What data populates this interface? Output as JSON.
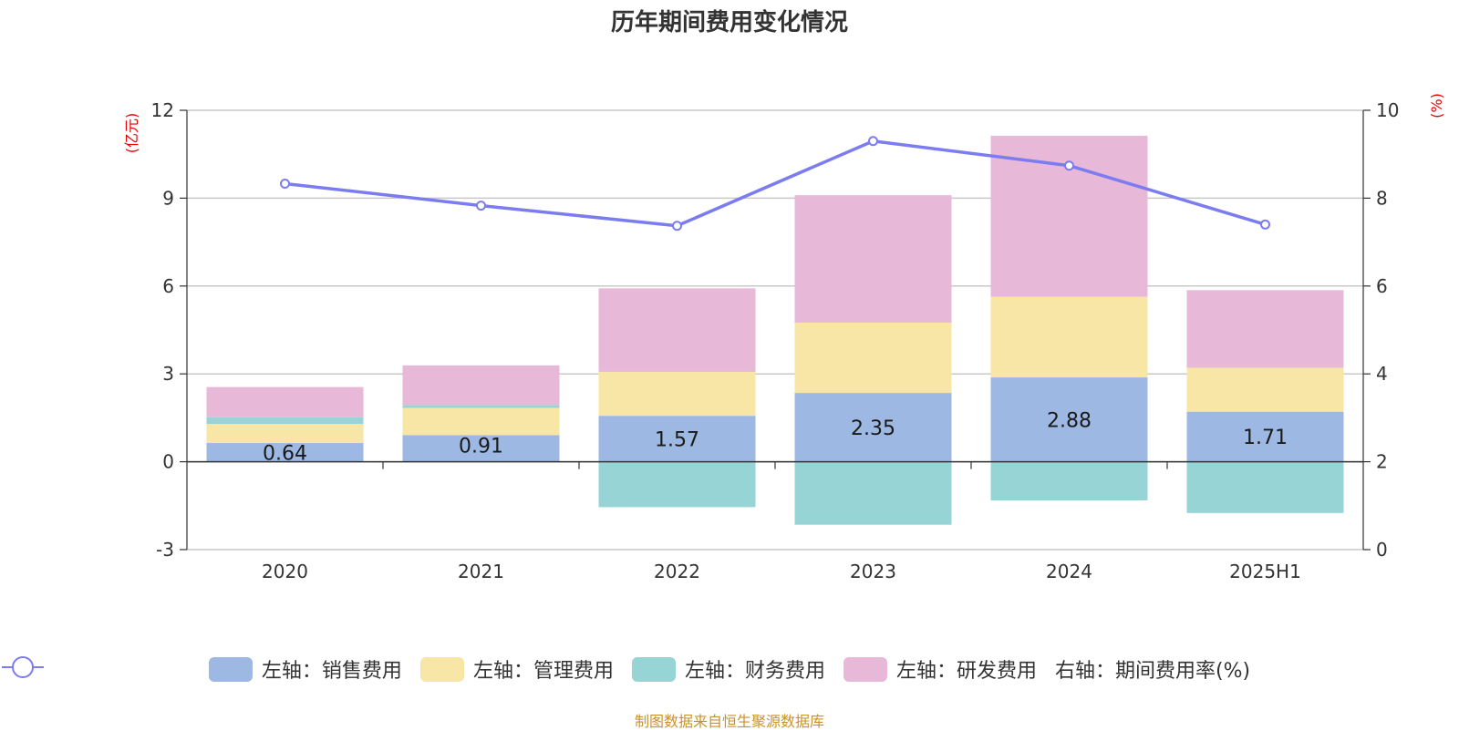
{
  "title": "历年期间费用变化情况",
  "source_note": "制图数据来自恒生聚源数据库",
  "left_unit": "(亿元)",
  "right_unit": "(%)",
  "colors": {
    "sales": "#9db8e2",
    "admin": "#f8e6a6",
    "finance": "#97d4d5",
    "rnd": "#e8b8d9",
    "rate": "#7b7cf0"
  },
  "legend": [
    {
      "key": "sales",
      "label": "左轴：销售费用"
    },
    {
      "key": "admin",
      "label": "左轴：管理费用"
    },
    {
      "key": "finance",
      "label": "左轴：财务费用"
    },
    {
      "key": "rnd",
      "label": "左轴：研发费用"
    },
    {
      "key": "rate",
      "label": "右轴：期间费用率(%)"
    }
  ],
  "chart_data": {
    "type": "bar",
    "stacked": true,
    "title": "历年期间费用变化情况",
    "categories": [
      "2020",
      "2021",
      "2022",
      "2023",
      "2024",
      "2025H1"
    ],
    "y_left": {
      "unit": "(亿元)",
      "ylim": [
        -3,
        12
      ],
      "ticks": [
        -3,
        0,
        3,
        6,
        9,
        12
      ]
    },
    "y_right": {
      "unit": "(%)",
      "ylim": [
        0,
        10
      ],
      "ticks": [
        0,
        2,
        4,
        6,
        8,
        10
      ]
    },
    "grid": true,
    "legend_position": "bottom",
    "series": [
      {
        "name": "左轴：销售费用",
        "key": "sales",
        "axis": "left",
        "values": [
          0.64,
          0.91,
          1.57,
          2.35,
          2.88,
          1.71
        ],
        "labels": [
          "0.64",
          "0.91",
          "1.57",
          "2.35",
          "2.88",
          "1.71"
        ]
      },
      {
        "name": "左轴：管理费用",
        "key": "admin",
        "axis": "left",
        "values": [
          0.65,
          0.93,
          1.5,
          2.4,
          2.75,
          1.5
        ]
      },
      {
        "name": "左轴：财务费用",
        "key": "finance",
        "axis": "left",
        "values": [
          0.23,
          0.1,
          -1.55,
          -2.15,
          -1.32,
          -1.75
        ]
      },
      {
        "name": "左轴：研发费用",
        "key": "rnd",
        "axis": "left",
        "values": [
          1.03,
          1.35,
          2.85,
          4.35,
          5.5,
          2.65
        ]
      },
      {
        "name": "右轴：期间费用率(%)",
        "key": "rate",
        "axis": "right",
        "type": "line",
        "values": [
          8.33,
          7.83,
          7.37,
          9.3,
          8.74,
          7.4
        ]
      }
    ]
  }
}
